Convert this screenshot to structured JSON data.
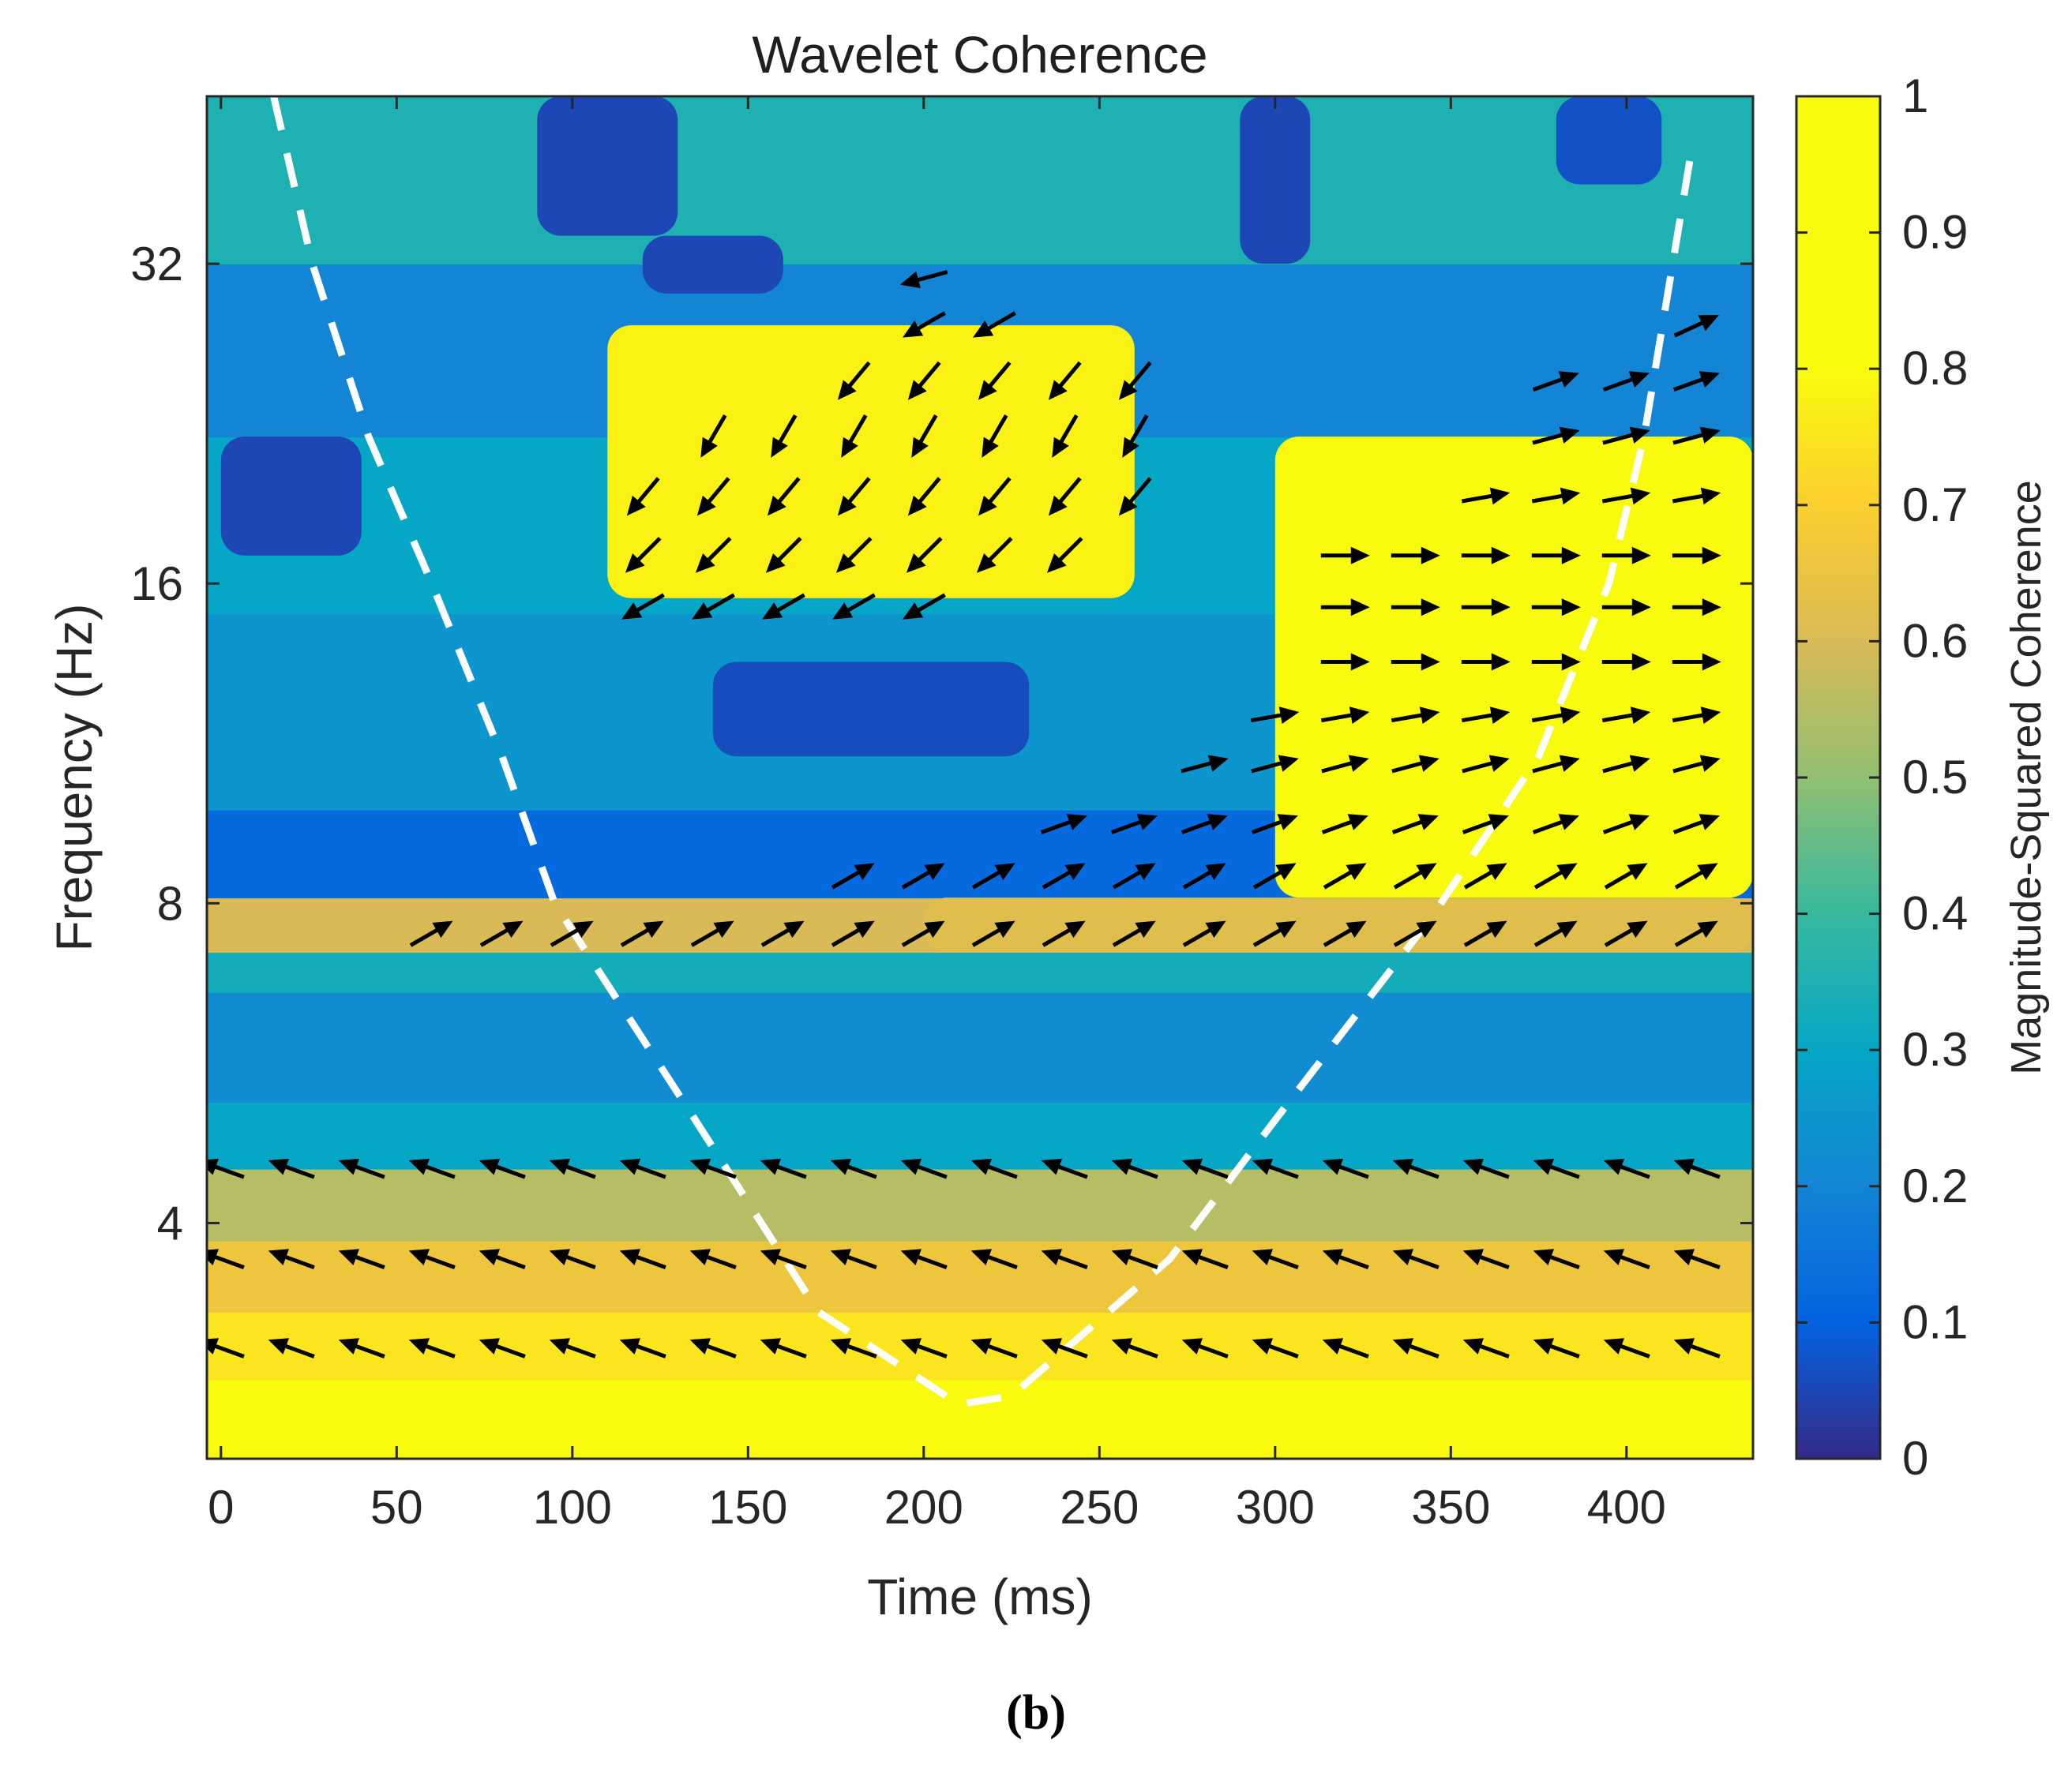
{
  "panel_label": "(b)",
  "chart_data": {
    "type": "heatmap",
    "title": "Wavelet Coherence",
    "xlabel": "Time (ms)",
    "ylabel": "Frequency (Hz)",
    "colorbar_label": "Magnitude-Squared Coherence",
    "colormap": "parula",
    "xlim": [
      -4,
      436
    ],
    "ylim_hz": [
      2.4,
      46
    ],
    "y_scale": "log2",
    "clim": [
      0,
      1
    ],
    "x_ticks": [
      0,
      50,
      100,
      150,
      200,
      250,
      300,
      350,
      400
    ],
    "x_tick_labels": [
      "0",
      "50",
      "100",
      "150",
      "200",
      "250",
      "300",
      "350",
      "400"
    ],
    "y_ticks": [
      4,
      8,
      16,
      32
    ],
    "y_tick_labels": [
      "4",
      "8",
      "16",
      "32"
    ],
    "colorbar_ticks": [
      0,
      0.1,
      0.2,
      0.3,
      0.4,
      0.5,
      0.6,
      0.7,
      0.8,
      0.9,
      1
    ],
    "colorbar_tick_labels": [
      "0",
      "0.1",
      "0.2",
      "0.3",
      "0.4",
      "0.5",
      "0.6",
      "0.7",
      "0.8",
      "0.9",
      "1"
    ],
    "grid": false,
    "coherence_bands": [
      {
        "f_low": 2.4,
        "f_high": 2.85,
        "coherence": 0.85
      },
      {
        "f_low": 2.85,
        "f_high": 3.3,
        "coherence": 0.75
      },
      {
        "f_low": 3.3,
        "f_high": 3.85,
        "coherence": 0.66
      },
      {
        "f_low": 3.85,
        "f_high": 4.5,
        "coherence": 0.55
      },
      {
        "f_low": 4.5,
        "f_high": 5.2,
        "coherence": 0.3
      },
      {
        "f_low": 5.2,
        "f_high": 6.6,
        "coherence": 0.22
      },
      {
        "f_low": 6.6,
        "f_high": 7.2,
        "coherence": 0.33
      },
      {
        "f_low": 7.2,
        "f_high": 8.1,
        "coherence": 0.6
      },
      {
        "f_low": 8.1,
        "f_high": 9.8,
        "coherence": 0.12
      },
      {
        "f_low": 9.8,
        "f_high": 15,
        "coherence": 0.25
      },
      {
        "f_low": 15,
        "f_high": 22,
        "coherence": 0.3
      },
      {
        "f_low": 22,
        "f_high": 32,
        "coherence": 0.2
      },
      {
        "f_low": 32,
        "f_high": 46,
        "coherence": 0.35
      }
    ],
    "coherence_regions": [
      {
        "t0": 110,
        "t1": 260,
        "f0": 15.5,
        "f1": 28,
        "coherence": 0.78
      },
      {
        "t0": 300,
        "t1": 436,
        "f0": 8.1,
        "f1": 22,
        "coherence": 0.86
      },
      {
        "t0": 360,
        "t1": 436,
        "f0": 12,
        "f1": 17,
        "coherence": 0.98
      },
      {
        "t0": 200,
        "t1": 436,
        "f0": 7.2,
        "f1": 8.1,
        "coherence": 0.62
      },
      {
        "t0": 0,
        "t1": 40,
        "f0": 17,
        "f1": 22,
        "coherence": 0.05
      },
      {
        "t0": 90,
        "t1": 130,
        "f0": 34,
        "f1": 46,
        "coherence": 0.05
      },
      {
        "t0": 290,
        "t1": 310,
        "f0": 32,
        "f1": 46,
        "coherence": 0.05
      },
      {
        "t0": 140,
        "t1": 230,
        "f0": 11,
        "f1": 13.5,
        "coherence": 0.06
      },
      {
        "t0": 120,
        "t1": 160,
        "f0": 30,
        "f1": 34,
        "coherence": 0.05
      },
      {
        "t0": 380,
        "t1": 410,
        "f0": 38,
        "f1": 46,
        "coherence": 0.07
      }
    ],
    "cone_of_influence": [
      {
        "t": 15,
        "f": 46
      },
      {
        "t": 26,
        "f": 32
      },
      {
        "t": 42,
        "f": 22
      },
      {
        "t": 60,
        "f": 16
      },
      {
        "t": 80,
        "f": 11
      },
      {
        "t": 95,
        "f": 8
      },
      {
        "t": 135,
        "f": 5
      },
      {
        "t": 170,
        "f": 3.3
      },
      {
        "t": 210,
        "f": 2.7
      },
      {
        "t": 225,
        "f": 2.75
      },
      {
        "t": 270,
        "f": 3.7
      },
      {
        "t": 300,
        "f": 5
      },
      {
        "t": 345,
        "f": 7.8
      },
      {
        "t": 375,
        "f": 11
      },
      {
        "t": 395,
        "f": 16
      },
      {
        "t": 405,
        "f": 22
      },
      {
        "t": 418,
        "f": 40
      }
    ],
    "phase_arrows": [
      {
        "f": 4.5,
        "t_start": 0,
        "t_end": 420,
        "step": 20,
        "angle_deg": 160
      },
      {
        "f": 3.7,
        "t_start": 0,
        "t_end": 420,
        "step": 20,
        "angle_deg": 160
      },
      {
        "f": 3.05,
        "t_start": 0,
        "t_end": 420,
        "step": 20,
        "angle_deg": 160
      },
      {
        "f": 7.5,
        "t_start": 60,
        "t_end": 420,
        "step": 20,
        "angle_deg": 30
      },
      {
        "f": 8.5,
        "t_start": 180,
        "t_end": 420,
        "step": 20,
        "angle_deg": 30
      },
      {
        "f": 9.5,
        "t_start": 240,
        "t_end": 420,
        "step": 20,
        "angle_deg": 20
      },
      {
        "f": 10.8,
        "t_start": 280,
        "t_end": 420,
        "step": 20,
        "angle_deg": 15
      },
      {
        "f": 12,
        "t_start": 300,
        "t_end": 420,
        "step": 20,
        "angle_deg": 10
      },
      {
        "f": 13.5,
        "t_start": 320,
        "t_end": 420,
        "step": 20,
        "angle_deg": 0
      },
      {
        "f": 15.2,
        "t_start": 320,
        "t_end": 420,
        "step": 20,
        "angle_deg": 0
      },
      {
        "f": 17,
        "t_start": 320,
        "t_end": 420,
        "step": 20,
        "angle_deg": 0
      },
      {
        "f": 19.3,
        "t_start": 360,
        "t_end": 420,
        "step": 20,
        "angle_deg": 10
      },
      {
        "f": 22,
        "t_start": 380,
        "t_end": 420,
        "step": 20,
        "angle_deg": 15
      },
      {
        "f": 24.8,
        "t_start": 380,
        "t_end": 420,
        "step": 20,
        "angle_deg": 20
      },
      {
        "f": 28,
        "t_start": 420,
        "t_end": 420,
        "step": 20,
        "angle_deg": 25
      },
      {
        "f": 15.2,
        "t_start": 120,
        "t_end": 200,
        "step": 20,
        "angle_deg": 210
      },
      {
        "f": 17,
        "t_start": 120,
        "t_end": 240,
        "step": 20,
        "angle_deg": 225
      },
      {
        "f": 19.3,
        "t_start": 120,
        "t_end": 260,
        "step": 20,
        "angle_deg": 230
      },
      {
        "f": 22,
        "t_start": 140,
        "t_end": 260,
        "step": 20,
        "angle_deg": 240
      },
      {
        "f": 24.8,
        "t_start": 180,
        "t_end": 260,
        "step": 20,
        "angle_deg": 230
      },
      {
        "f": 28,
        "t_start": 200,
        "t_end": 220,
        "step": 20,
        "angle_deg": 210
      },
      {
        "f": 31,
        "t_start": 200,
        "t_end": 200,
        "step": 20,
        "angle_deg": 195
      }
    ]
  }
}
